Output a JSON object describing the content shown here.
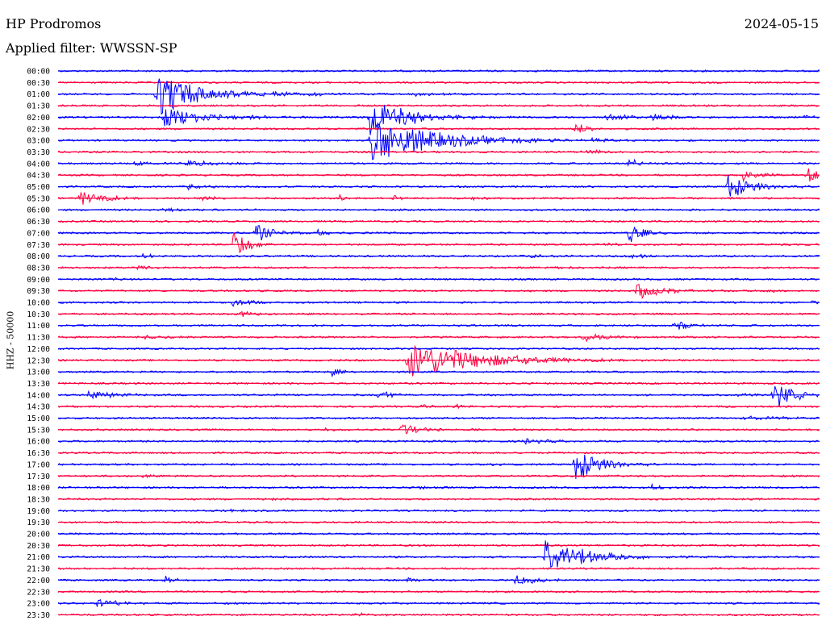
{
  "header": {
    "station": "HP Prodromos",
    "date": "2024-05-15",
    "filter": "Applied filter: WWSSN-SP"
  },
  "chart_data": {
    "type": "line",
    "ylabel": "HHZ - 50000",
    "colors": [
      "#0000ff",
      "#ff0040"
    ],
    "time_labels": [
      "00:00",
      "00:30",
      "01:00",
      "01:30",
      "02:00",
      "02:30",
      "03:00",
      "03:30",
      "04:00",
      "04:30",
      "05:00",
      "05:30",
      "06:00",
      "06:30",
      "07:00",
      "07:30",
      "08:00",
      "08:30",
      "09:00",
      "09:30",
      "10:00",
      "10:30",
      "11:00",
      "11:30",
      "12:00",
      "12:30",
      "13:00",
      "13:30",
      "14:00",
      "14:30",
      "15:00",
      "15:30",
      "16:00",
      "16:30",
      "17:00",
      "17:30",
      "18:00",
      "18:30",
      "19:00",
      "19:30",
      "20:00",
      "20:30",
      "21:00",
      "21:30",
      "22:00",
      "22:30",
      "23:00",
      "23:30"
    ],
    "events": [
      {
        "row": 2,
        "x": 0.13,
        "amp": 5.0,
        "dur": 0.05
      },
      {
        "row": 4,
        "x": 0.14,
        "amp": 2.0,
        "dur": 0.06
      },
      {
        "row": 2,
        "x": 0.28,
        "amp": 0.7,
        "dur": 0.02
      },
      {
        "row": 2,
        "x": 0.33,
        "amp": 0.5,
        "dur": 0.02
      },
      {
        "row": 2,
        "x": 0.47,
        "amp": 0.4,
        "dur": 0.03
      },
      {
        "row": 4,
        "x": 0.41,
        "amp": 4.0,
        "dur": 0.05
      },
      {
        "row": 6,
        "x": 0.41,
        "amp": 5.0,
        "dur": 0.08
      },
      {
        "row": 5,
        "x": 0.68,
        "amp": 1.2,
        "dur": 0.02
      },
      {
        "row": 4,
        "x": 0.72,
        "amp": 0.6,
        "dur": 0.04
      },
      {
        "row": 4,
        "x": 0.78,
        "amp": 0.8,
        "dur": 0.03
      },
      {
        "row": 4,
        "x": 0.98,
        "amp": 0.5,
        "dur": 0.01
      },
      {
        "row": 6,
        "x": 0.7,
        "amp": 0.4,
        "dur": 0.03
      },
      {
        "row": 7,
        "x": 0.69,
        "amp": 0.5,
        "dur": 0.03
      },
      {
        "row": 8,
        "x": 0.1,
        "amp": 0.6,
        "dur": 0.02
      },
      {
        "row": 8,
        "x": 0.17,
        "amp": 0.8,
        "dur": 0.03
      },
      {
        "row": 8,
        "x": 0.75,
        "amp": 1.6,
        "dur": 0.01
      },
      {
        "row": 9,
        "x": 0.9,
        "amp": 1.2,
        "dur": 0.02
      },
      {
        "row": 10,
        "x": 0.88,
        "amp": 3.0,
        "dur": 0.03
      },
      {
        "row": 9,
        "x": 0.985,
        "amp": 1.5,
        "dur": 0.04
      },
      {
        "row": 10,
        "x": 0.17,
        "amp": 0.6,
        "dur": 0.02
      },
      {
        "row": 11,
        "x": 0.03,
        "amp": 1.5,
        "dur": 0.03
      },
      {
        "row": 11,
        "x": 0.37,
        "amp": 0.8,
        "dur": 0.01
      },
      {
        "row": 11,
        "x": 0.44,
        "amp": 0.6,
        "dur": 0.01
      },
      {
        "row": 11,
        "x": 0.54,
        "amp": 0.5,
        "dur": 0.01
      },
      {
        "row": 11,
        "x": 0.19,
        "amp": 0.5,
        "dur": 0.02
      },
      {
        "row": 12,
        "x": 0.14,
        "amp": 0.4,
        "dur": 0.02
      },
      {
        "row": 14,
        "x": 0.34,
        "amp": 1.0,
        "dur": 0.01
      },
      {
        "row": 14,
        "x": 0.26,
        "amp": 2.0,
        "dur": 0.02
      },
      {
        "row": 14,
        "x": 0.75,
        "amp": 2.0,
        "dur": 0.02
      },
      {
        "row": 15,
        "x": 0.72,
        "amp": 0.8,
        "dur": 0.01
      },
      {
        "row": 15,
        "x": 0.23,
        "amp": 3.0,
        "dur": 0.02
      },
      {
        "row": 16,
        "x": 0.11,
        "amp": 0.5,
        "dur": 0.02
      },
      {
        "row": 16,
        "x": 0.62,
        "amp": 0.4,
        "dur": 0.02
      },
      {
        "row": 16,
        "x": 0.75,
        "amp": 0.5,
        "dur": 0.02
      },
      {
        "row": 17,
        "x": 0.1,
        "amp": 0.4,
        "dur": 0.02
      },
      {
        "row": 17,
        "x": 0.65,
        "amp": 0.3,
        "dur": 0.02
      },
      {
        "row": 18,
        "x": 0.07,
        "amp": 0.3,
        "dur": 0.02
      },
      {
        "row": 19,
        "x": 0.76,
        "amp": 1.8,
        "dur": 0.03
      },
      {
        "row": 19,
        "x": 0.93,
        "amp": 0.4,
        "dur": 0.02
      },
      {
        "row": 20,
        "x": 0.23,
        "amp": 1.0,
        "dur": 0.02
      },
      {
        "row": 20,
        "x": 0.99,
        "amp": 0.6,
        "dur": 0.01
      },
      {
        "row": 21,
        "x": 0.24,
        "amp": 0.6,
        "dur": 0.02
      },
      {
        "row": 22,
        "x": 0.0,
        "amp": 0.4,
        "dur": 0.01
      },
      {
        "row": 22,
        "x": 0.81,
        "amp": 1.2,
        "dur": 0.02
      },
      {
        "row": 23,
        "x": 0.11,
        "amp": 0.4,
        "dur": 0.04
      },
      {
        "row": 23,
        "x": 0.69,
        "amp": 0.9,
        "dur": 0.03
      },
      {
        "row": 25,
        "x": 0.46,
        "amp": 4.0,
        "dur": 0.09
      },
      {
        "row": 26,
        "x": 0.36,
        "amp": 1.0,
        "dur": 0.01
      },
      {
        "row": 28,
        "x": 0.04,
        "amp": 1.0,
        "dur": 0.03
      },
      {
        "row": 28,
        "x": 0.42,
        "amp": 1.0,
        "dur": 0.02
      },
      {
        "row": 28,
        "x": 0.94,
        "amp": 3.0,
        "dur": 0.03
      },
      {
        "row": 28,
        "x": 0.89,
        "amp": 0.3,
        "dur": 0.02
      },
      {
        "row": 29,
        "x": 0.48,
        "amp": 0.5,
        "dur": 0.01
      },
      {
        "row": 29,
        "x": 0.52,
        "amp": 0.6,
        "dur": 0.01
      },
      {
        "row": 30,
        "x": 0.9,
        "amp": 0.4,
        "dur": 0.05
      },
      {
        "row": 31,
        "x": 0.35,
        "amp": 0.4,
        "dur": 0.01
      },
      {
        "row": 31,
        "x": 0.45,
        "amp": 1.3,
        "dur": 0.03
      },
      {
        "row": 32,
        "x": 0.61,
        "amp": 0.5,
        "dur": 0.04
      },
      {
        "row": 34,
        "x": 0.68,
        "amp": 4.0,
        "dur": 0.03
      },
      {
        "row": 34,
        "x": 0.57,
        "amp": 0.3,
        "dur": 0.01
      },
      {
        "row": 35,
        "x": 0.11,
        "amp": 0.5,
        "dur": 0.01
      },
      {
        "row": 36,
        "x": 0.47,
        "amp": 0.4,
        "dur": 0.02
      },
      {
        "row": 36,
        "x": 0.78,
        "amp": 0.5,
        "dur": 0.02
      },
      {
        "row": 37,
        "x": 0.28,
        "amp": 0.3,
        "dur": 0.01
      },
      {
        "row": 38,
        "x": 0.22,
        "amp": 0.3,
        "dur": 0.02
      },
      {
        "row": 42,
        "x": 0.64,
        "amp": 4.0,
        "dur": 0.05
      },
      {
        "row": 44,
        "x": 0.14,
        "amp": 1.0,
        "dur": 0.01
      },
      {
        "row": 44,
        "x": 0.46,
        "amp": 1.0,
        "dur": 0.01
      },
      {
        "row": 44,
        "x": 0.6,
        "amp": 1.0,
        "dur": 0.03
      },
      {
        "row": 46,
        "x": 0.05,
        "amp": 1.0,
        "dur": 0.03
      },
      {
        "row": 47,
        "x": 0.39,
        "amp": 0.4,
        "dur": 0.02
      }
    ]
  }
}
